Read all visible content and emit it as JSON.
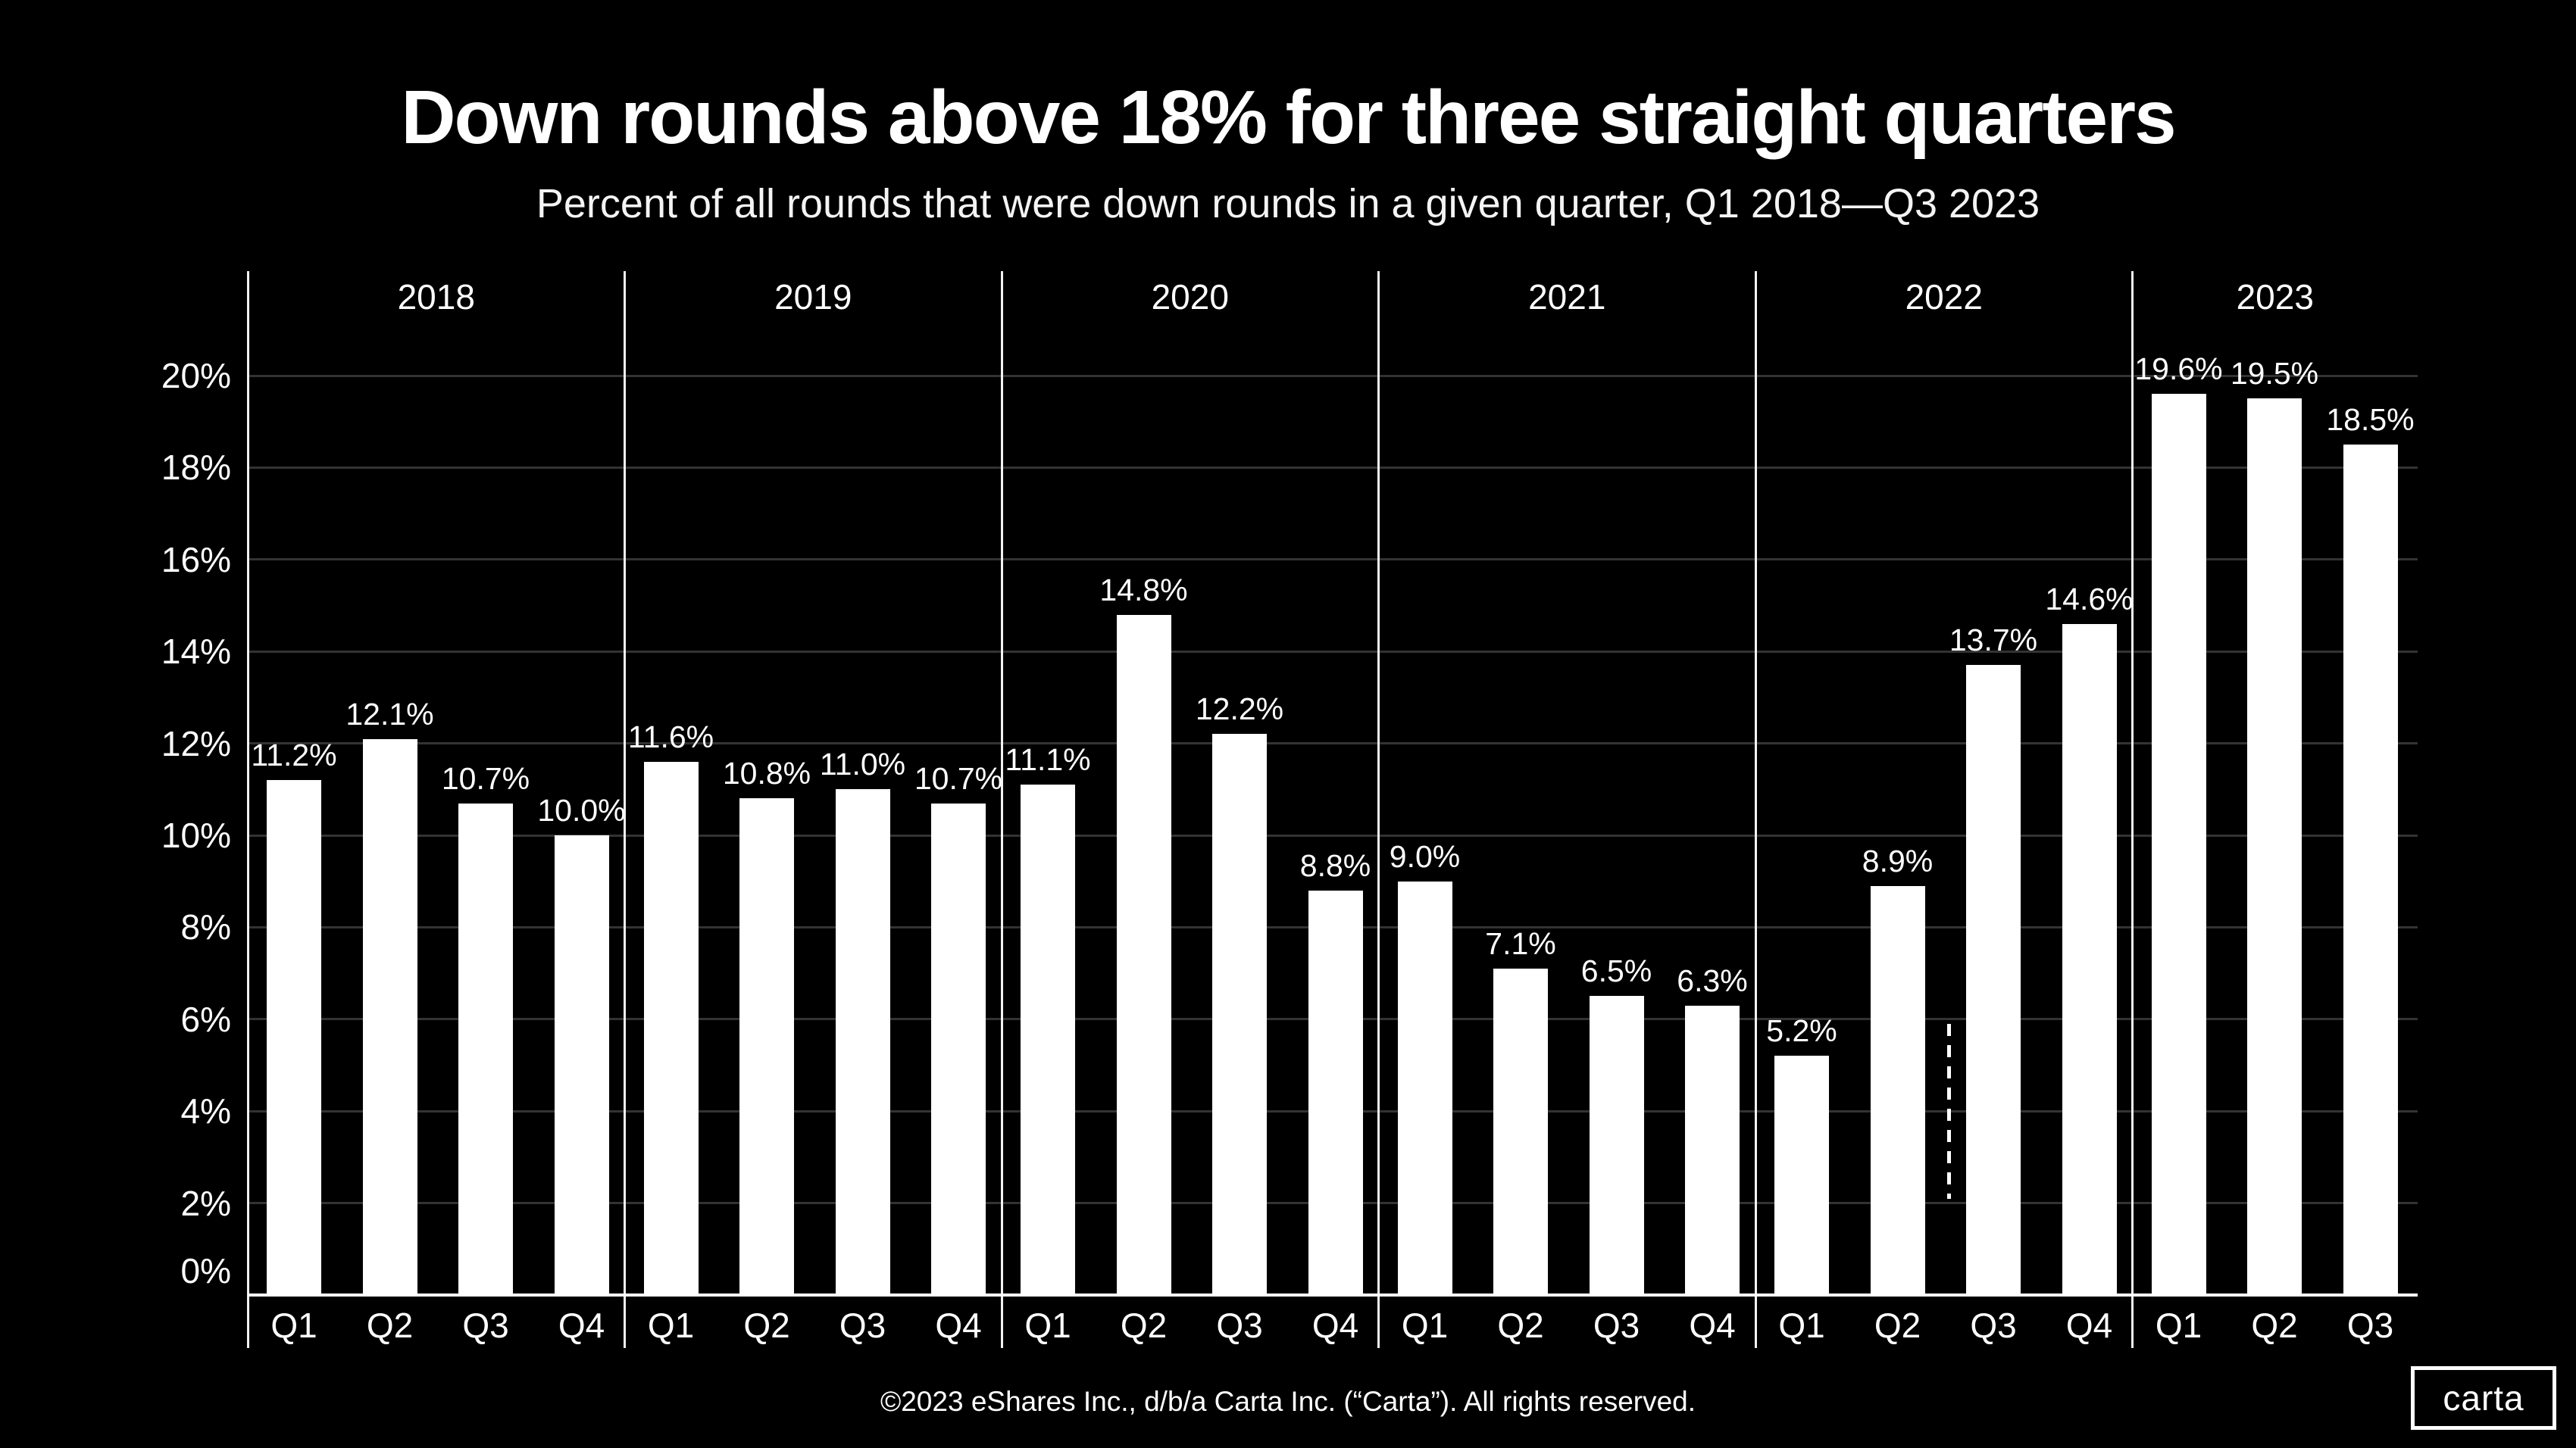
{
  "title": "Down rounds above 18% for three straight quarters",
  "subtitle": "Percent of all rounds that were down rounds in a given quarter, Q1 2018—Q3 2023",
  "footer": {
    "copyright": "©2023 eShares Inc., d/b/a Carta Inc. (“Carta”). All rights reserved.",
    "logo_text": "carta"
  },
  "colors": {
    "background": "#000000",
    "bar": "#ffffff",
    "text": "#ffffff",
    "gridline": "#333333",
    "separator": "#f2f2f2",
    "axis": "#ffffff"
  },
  "chart_data": {
    "type": "bar",
    "title": "Down rounds above 18% for three straight quarters",
    "subtitle": "Percent of all rounds that were down rounds in a given quarter, Q1 2018—Q3 2023",
    "xlabel": "",
    "ylabel": "",
    "ylim": [
      0,
      21.5
    ],
    "grid": "horizontal",
    "legend": "none",
    "ytick_values": [
      0,
      2,
      4,
      6,
      8,
      10,
      12,
      14,
      16,
      18,
      20
    ],
    "ytick_labels": [
      "0%",
      "2%",
      "4%",
      "6%",
      "8%",
      "10%",
      "12%",
      "14%",
      "16%",
      "18%",
      "20%"
    ],
    "groups": [
      {
        "year": "2018",
        "categories": [
          "Q1",
          "Q2",
          "Q3",
          "Q4"
        ],
        "values": [
          11.2,
          12.1,
          10.7,
          10.0
        ],
        "labels": [
          "11.2%",
          "12.1%",
          "10.7%",
          "10.0%"
        ]
      },
      {
        "year": "2019",
        "categories": [
          "Q1",
          "Q2",
          "Q3",
          "Q4"
        ],
        "values": [
          11.6,
          10.8,
          11.0,
          10.7
        ],
        "labels": [
          "11.6%",
          "10.8%",
          "11.0%",
          "10.7%"
        ]
      },
      {
        "year": "2020",
        "categories": [
          "Q1",
          "Q2",
          "Q3",
          "Q4"
        ],
        "values": [
          11.1,
          14.8,
          12.2,
          8.8
        ],
        "labels": [
          "11.1%",
          "14.8%",
          "12.2%",
          "8.8%"
        ]
      },
      {
        "year": "2021",
        "categories": [
          "Q1",
          "Q2",
          "Q3",
          "Q4"
        ],
        "values": [
          9.0,
          7.1,
          6.5,
          6.3
        ],
        "labels": [
          "9.0%",
          "7.1%",
          "6.5%",
          "6.3%"
        ]
      },
      {
        "year": "2022",
        "categories": [
          "Q1",
          "Q2",
          "Q3",
          "Q4"
        ],
        "values": [
          5.2,
          8.9,
          13.7,
          14.6
        ],
        "labels": [
          "5.2%",
          "8.9%",
          "13.7%",
          "14.6%"
        ]
      },
      {
        "year": "2023",
        "categories": [
          "Q1",
          "Q2",
          "Q3"
        ],
        "values": [
          19.6,
          19.5,
          18.5
        ],
        "labels": [
          "19.6%",
          "19.5%",
          "18.5%"
        ]
      }
    ],
    "annotation": {
      "type": "dashed-vertical-line",
      "year": "2022",
      "between_quarters": [
        "Q2",
        "Q3"
      ],
      "from_pct": 5.9,
      "to_pct": 2.1
    }
  }
}
